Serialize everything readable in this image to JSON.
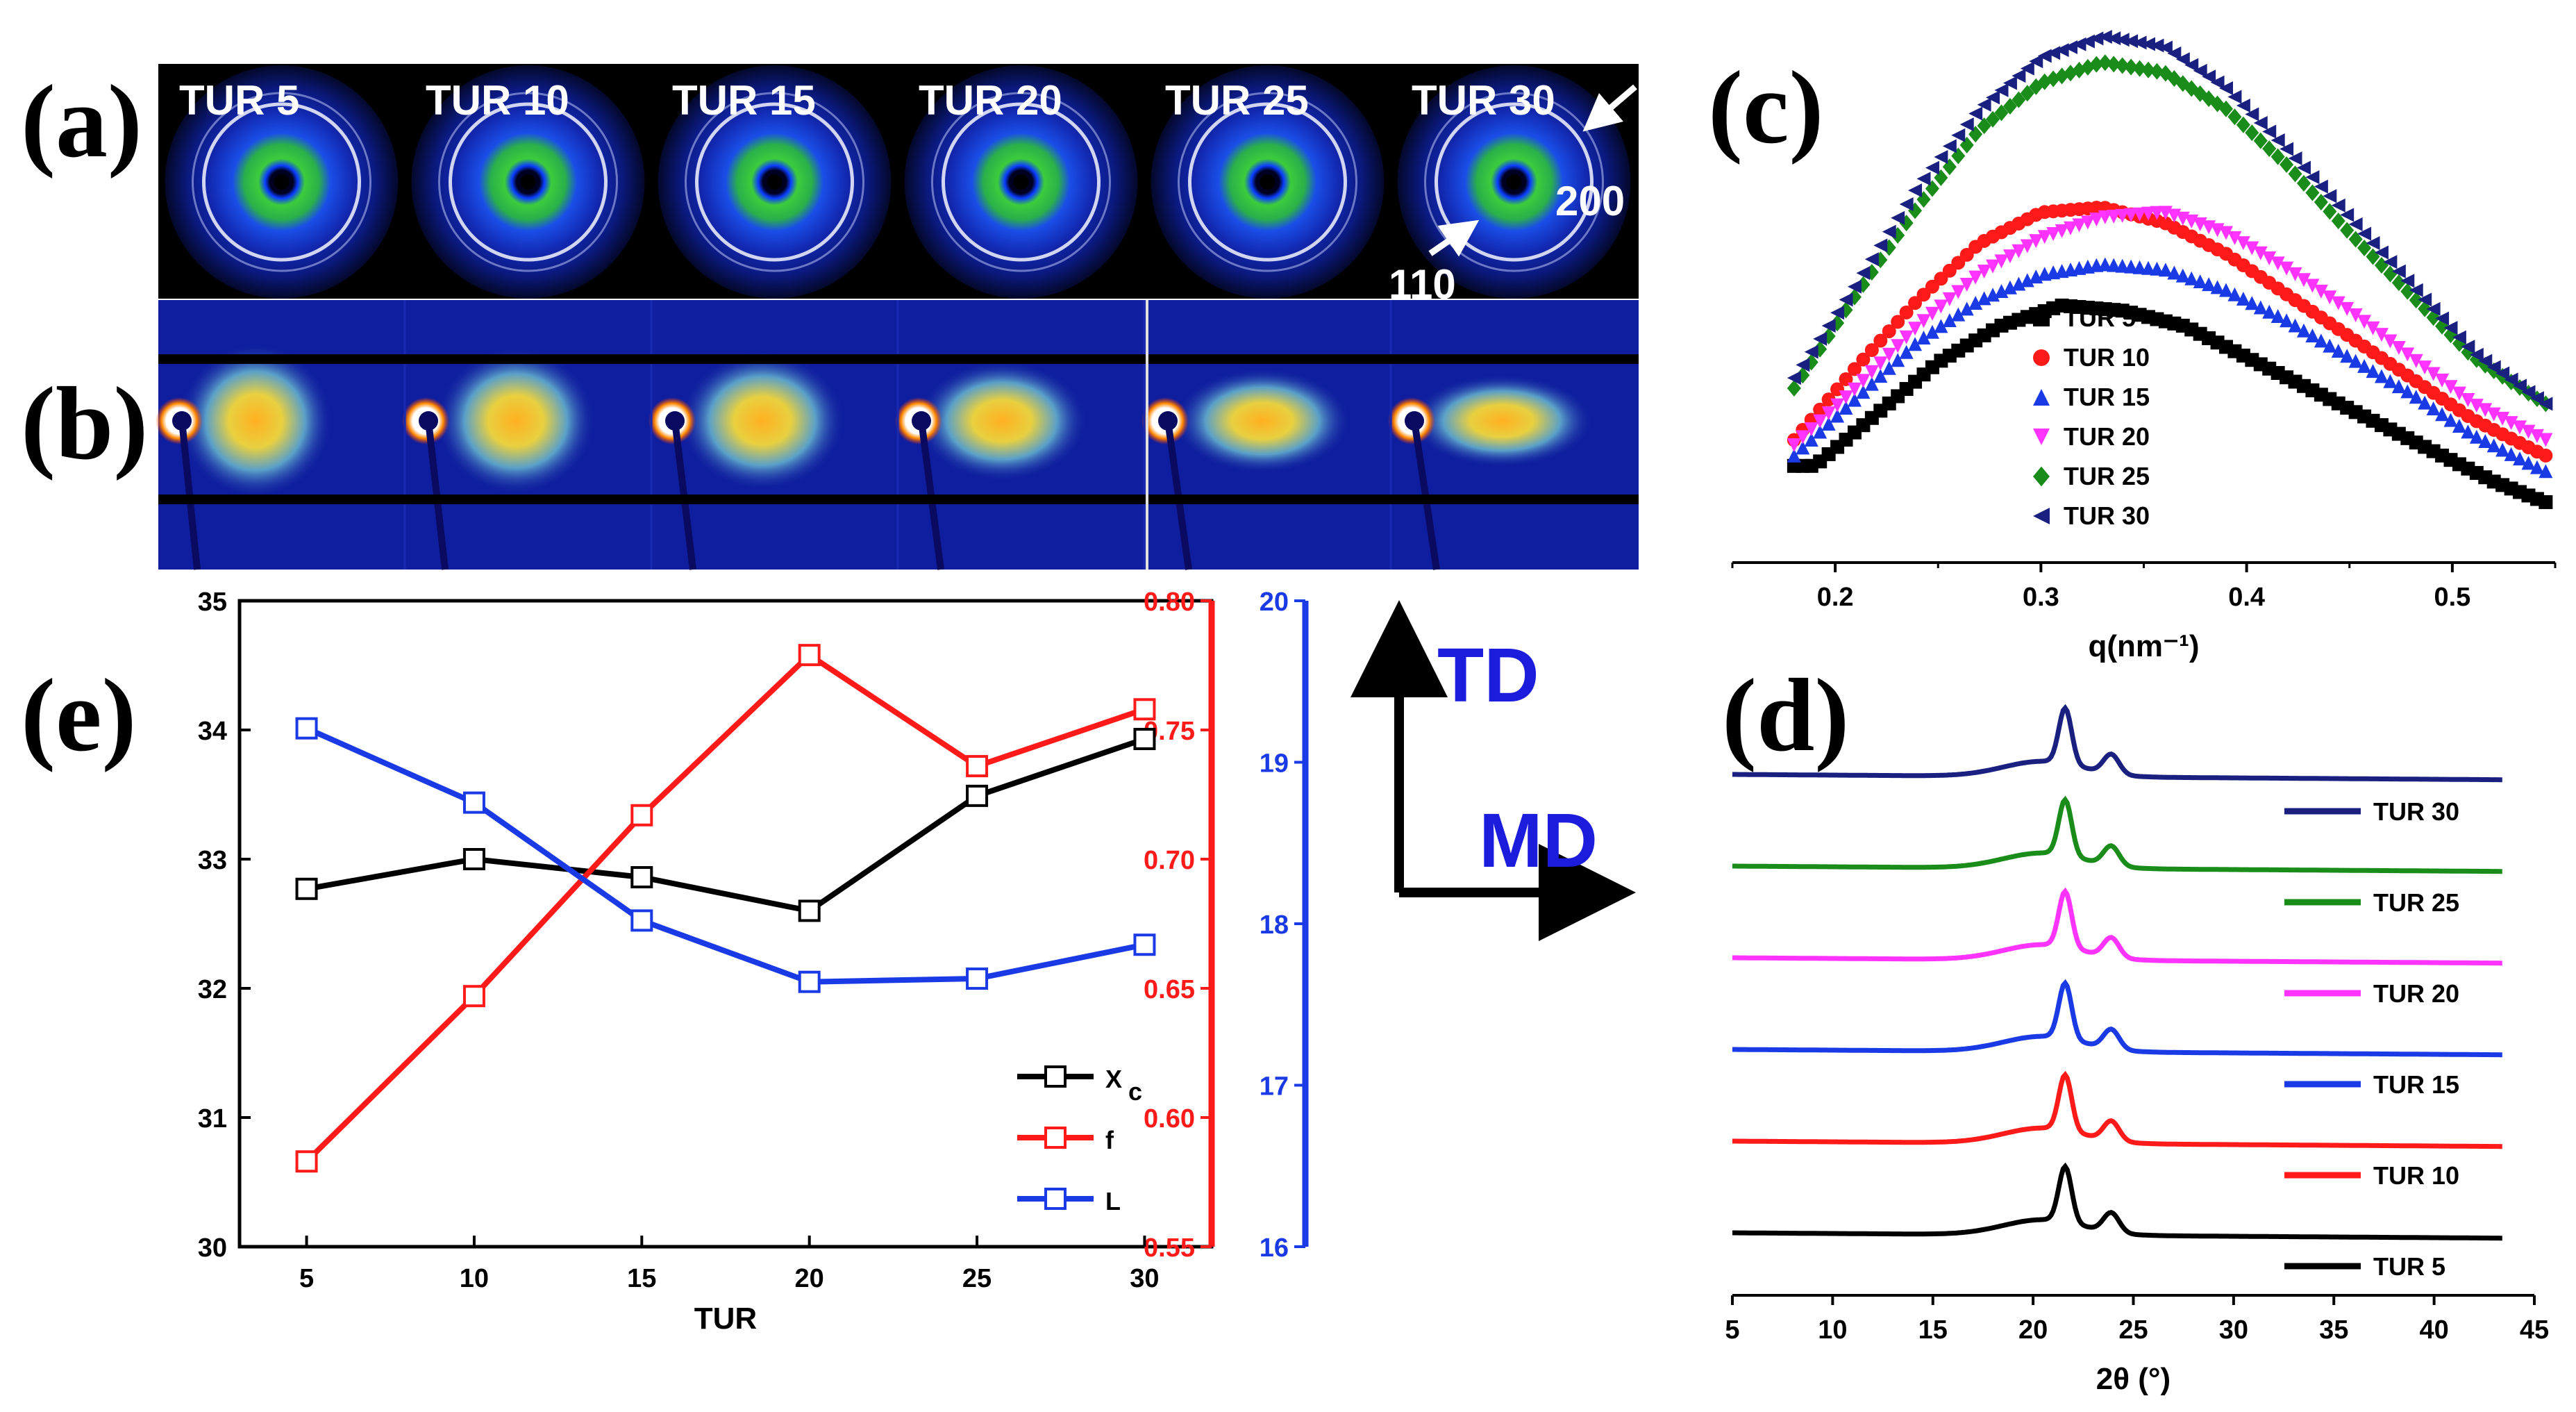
{
  "panels": {
    "a": "(a)",
    "b": "(b)",
    "c": "(c)",
    "d": "(d)",
    "e": "(e)"
  },
  "waxs": {
    "labels": [
      "TUR 5",
      "TUR 10",
      "TUR 15",
      "TUR 20",
      "TUR 25",
      "TUR 30"
    ],
    "peak_200": "200",
    "peak_110": "110",
    "ring_colors": [
      "#00184d",
      "#1f3be0",
      "#3cc83c",
      "#ffffff"
    ]
  },
  "saxs_pattern": {
    "colors": [
      "#0a1a8c",
      "#3d6be0",
      "#f0d030",
      "#ff8c1a"
    ]
  },
  "directions": {
    "td": "TD",
    "md": "MD",
    "color": "#1c1cdc"
  },
  "chart_data": [
    {
      "id": "c",
      "type": "scatter",
      "title": "",
      "xlabel": "q(nm⁻¹)",
      "ylabel": "",
      "xlim": [
        0.15,
        0.55
      ],
      "ylim": [
        0,
        1
      ],
      "x_ticks": [
        0.2,
        0.3,
        0.4,
        0.5
      ],
      "x_tick_labels": [
        "0.2",
        "0.3",
        "0.4",
        "0.5"
      ],
      "legend_position": "inside-center",
      "series": [
        {
          "name": "TUR 5",
          "color": "#000000",
          "marker": "square",
          "x": [
            0.19,
            0.22,
            0.25,
            0.28,
            0.31,
            0.34,
            0.37,
            0.4,
            0.43,
            0.46,
            0.49,
            0.52,
            0.545
          ],
          "y": [
            0.16,
            0.26,
            0.36,
            0.43,
            0.47,
            0.46,
            0.43,
            0.37,
            0.31,
            0.25,
            0.19,
            0.13,
            0.09
          ]
        },
        {
          "name": "TUR 10",
          "color": "#ff1a1a",
          "marker": "circle",
          "x": [
            0.18,
            0.21,
            0.24,
            0.27,
            0.3,
            0.33,
            0.36,
            0.39,
            0.42,
            0.45,
            0.48,
            0.51,
            0.545
          ],
          "y": [
            0.21,
            0.35,
            0.48,
            0.59,
            0.65,
            0.66,
            0.63,
            0.57,
            0.49,
            0.41,
            0.33,
            0.25,
            0.18
          ]
        },
        {
          "name": "TUR 15",
          "color": "#1a3ae6",
          "marker": "triangle-up",
          "x": [
            0.18,
            0.21,
            0.24,
            0.27,
            0.3,
            0.33,
            0.36,
            0.39,
            0.42,
            0.45,
            0.48,
            0.51,
            0.545
          ],
          "y": [
            0.18,
            0.29,
            0.4,
            0.48,
            0.53,
            0.55,
            0.54,
            0.5,
            0.44,
            0.37,
            0.3,
            0.22,
            0.15
          ]
        },
        {
          "name": "TUR 20",
          "color": "#ff33ff",
          "marker": "triangle-down",
          "x": [
            0.18,
            0.21,
            0.24,
            0.27,
            0.3,
            0.33,
            0.36,
            0.39,
            0.42,
            0.45,
            0.48,
            0.51,
            0.545
          ],
          "y": [
            0.2,
            0.31,
            0.43,
            0.53,
            0.6,
            0.64,
            0.65,
            0.61,
            0.54,
            0.46,
            0.37,
            0.28,
            0.21
          ]
        },
        {
          "name": "TUR 25",
          "color": "#1a8c1a",
          "marker": "diamond",
          "x": [
            0.18,
            0.21,
            0.24,
            0.27,
            0.3,
            0.33,
            0.36,
            0.39,
            0.42,
            0.45,
            0.48,
            0.51,
            0.545
          ],
          "y": [
            0.31,
            0.49,
            0.66,
            0.81,
            0.9,
            0.94,
            0.92,
            0.85,
            0.74,
            0.61,
            0.49,
            0.37,
            0.28
          ]
        },
        {
          "name": "TUR 30",
          "color": "#1a2080",
          "marker": "triangle-left",
          "x": [
            0.18,
            0.21,
            0.24,
            0.27,
            0.3,
            0.33,
            0.36,
            0.39,
            0.42,
            0.45,
            0.48,
            0.51,
            0.545
          ],
          "y": [
            0.33,
            0.51,
            0.7,
            0.85,
            0.95,
            0.99,
            0.97,
            0.89,
            0.77,
            0.64,
            0.51,
            0.38,
            0.28
          ]
        }
      ]
    },
    {
      "id": "d",
      "type": "line",
      "title": "",
      "xlabel": "2θ (°)",
      "ylabel": "",
      "xlim": [
        5,
        45
      ],
      "ylim": [
        0,
        1
      ],
      "x_ticks": [
        5,
        10,
        15,
        20,
        25,
        30,
        35,
        40,
        45
      ],
      "x_tick_labels": [
        "5",
        "10",
        "15",
        "20",
        "25",
        "30",
        "35",
        "40",
        "45"
      ],
      "legend_position": "right",
      "peaks": [
        21.6,
        23.9
      ],
      "series": [
        {
          "name": "TUR 30",
          "color": "#1a2080",
          "offset": 5
        },
        {
          "name": "TUR 25",
          "color": "#1a8c1a",
          "offset": 4
        },
        {
          "name": "TUR 20",
          "color": "#ff33ff",
          "offset": 3
        },
        {
          "name": "TUR 15",
          "color": "#1a3ae6",
          "offset": 2
        },
        {
          "name": "TUR 10",
          "color": "#ff1a1a",
          "offset": 1
        },
        {
          "name": "TUR 5",
          "color": "#000000",
          "offset": 0
        }
      ]
    },
    {
      "id": "e",
      "type": "line",
      "title": "",
      "xlabel": "TUR",
      "ylabel": "",
      "x": [
        5,
        10,
        15,
        20,
        25,
        30
      ],
      "xlim": [
        3,
        32
      ],
      "x_tick_labels": [
        "5",
        "10",
        "15",
        "20",
        "25",
        "30"
      ],
      "legend_position": "bottom-right",
      "axes": [
        {
          "side": "left",
          "color": "#000000",
          "lim": [
            30,
            35
          ],
          "ticks": [
            30,
            31,
            32,
            33,
            34,
            35
          ],
          "tick_labels": [
            "30",
            "31",
            "32",
            "33",
            "34",
            "35"
          ]
        },
        {
          "side": "right",
          "color": "#ff1a1a",
          "lim": [
            0.55,
            0.8
          ],
          "ticks": [
            0.55,
            0.6,
            0.65,
            0.7,
            0.75,
            0.8
          ],
          "tick_labels": [
            "0.55",
            "0.60",
            "0.65",
            "0.70",
            "0.75",
            "0.80"
          ]
        },
        {
          "side": "right-outer",
          "color": "#1a3ae6",
          "lim": [
            16,
            20
          ],
          "ticks": [
            16,
            17,
            18,
            19,
            20
          ],
          "tick_labels": [
            "16",
            "17",
            "18",
            "19",
            "20"
          ]
        }
      ],
      "series": [
        {
          "name": "X",
          "subscript": "c",
          "axis": 0,
          "color": "#000000",
          "values": [
            32.77,
            33.0,
            32.86,
            32.6,
            33.49,
            33.93
          ]
        },
        {
          "name": "f",
          "subscript": "",
          "axis": 1,
          "color": "#ff1a1a",
          "values": [
            0.583,
            0.647,
            0.717,
            0.779,
            0.736,
            0.758
          ]
        },
        {
          "name": "L",
          "subscript": "",
          "axis": 2,
          "color": "#1a3ae6",
          "values": [
            19.21,
            18.75,
            18.02,
            17.64,
            17.66,
            17.87
          ]
        }
      ]
    }
  ]
}
